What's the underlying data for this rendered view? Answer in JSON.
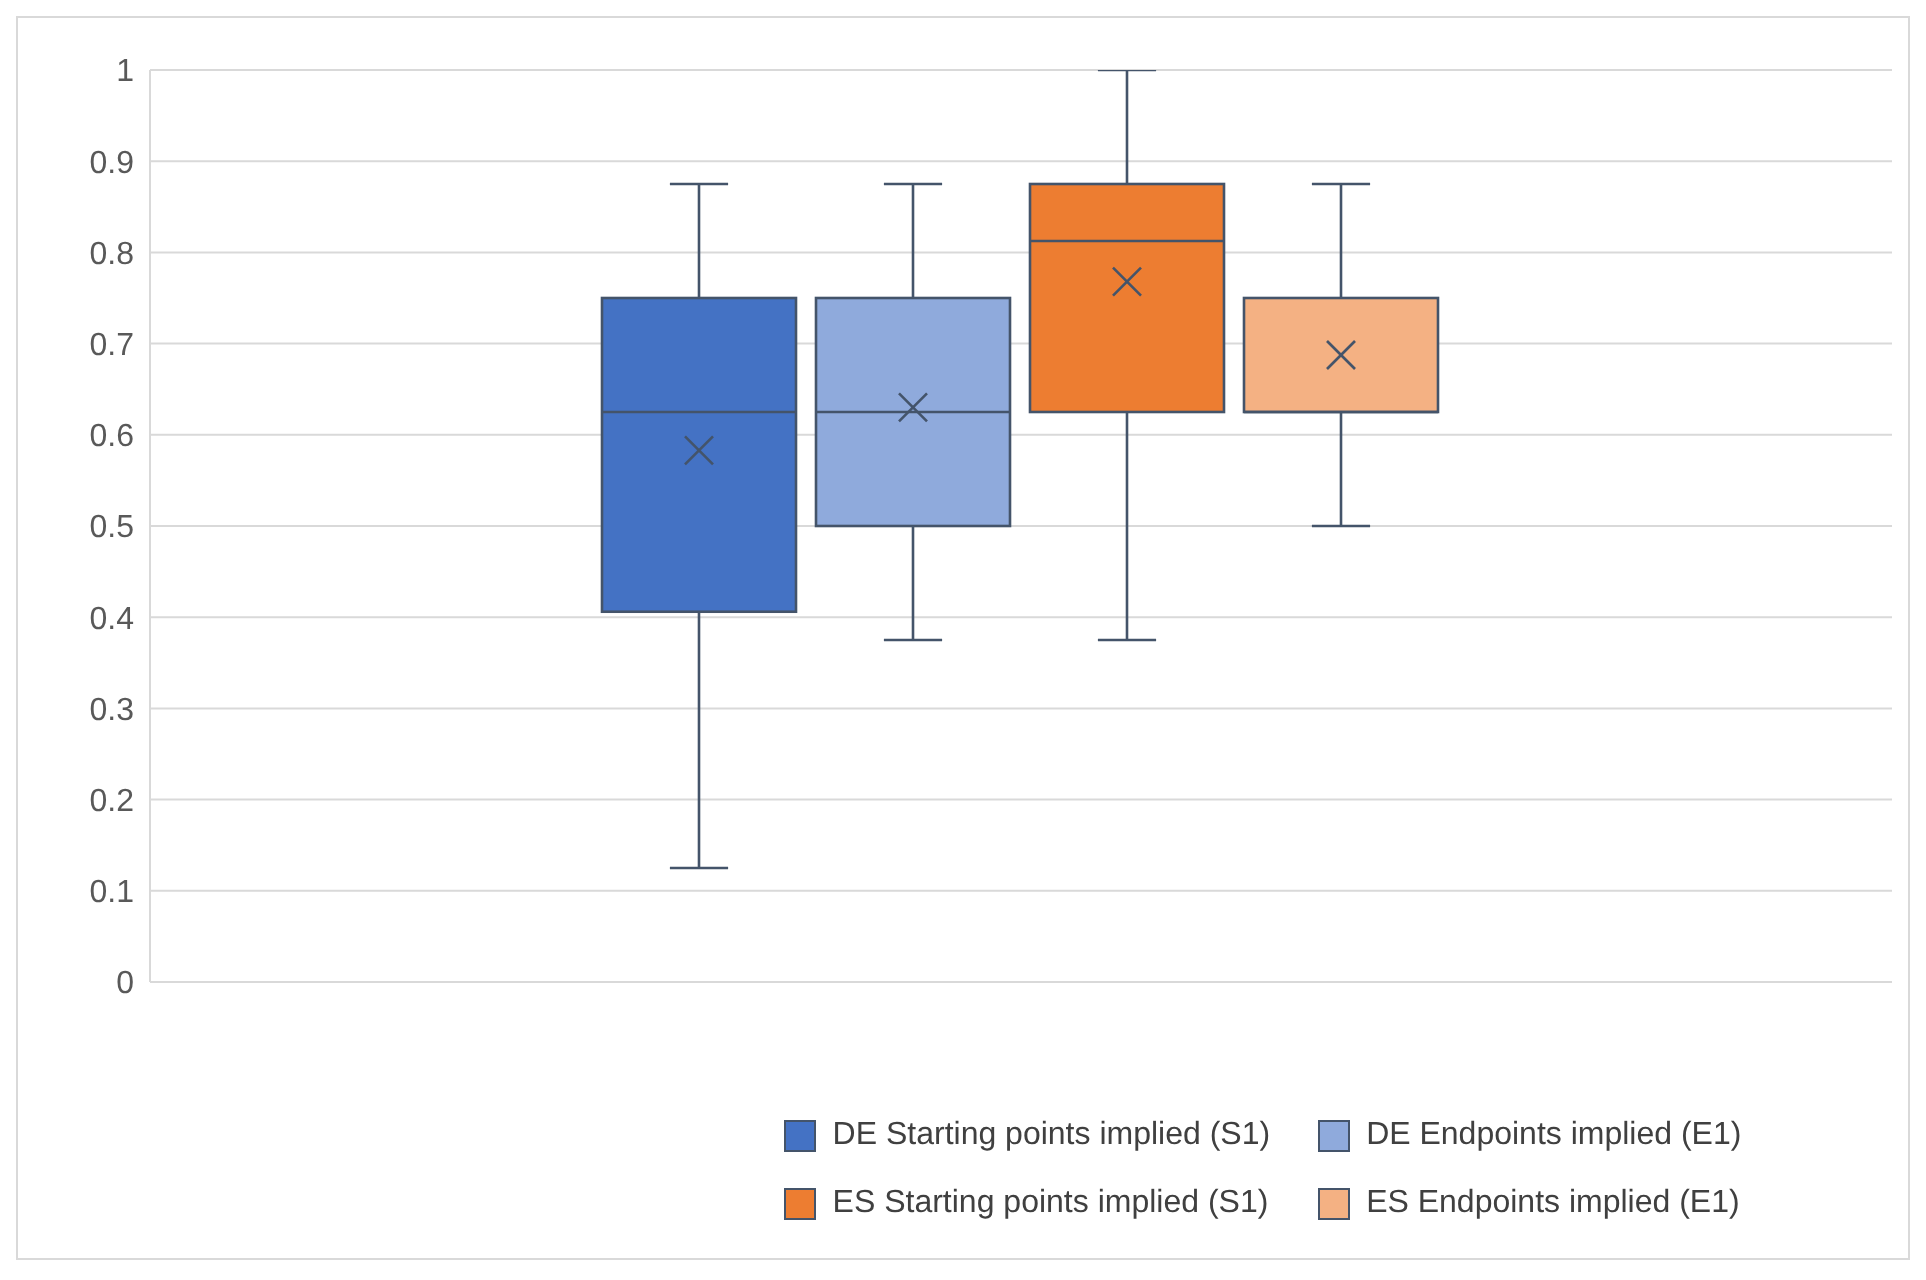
{
  "chart_data": {
    "type": "box",
    "categories": [
      null
    ],
    "series": [
      {
        "name": "DE Starting points implied (S1)",
        "color": "#4472c4",
        "boxes": [
          {
            "low": 0.125,
            "q1": 0.406,
            "median": 0.625,
            "q3": 0.75,
            "high": 0.875,
            "mean": 0.583
          }
        ]
      },
      {
        "name": "DE Endpoints implied (E1)",
        "color": "#8faadc",
        "boxes": [
          {
            "low": 0.375,
            "q1": 0.5,
            "median": 0.625,
            "q3": 0.75,
            "high": 0.875,
            "mean": 0.63
          }
        ]
      },
      {
        "name": "ES Starting points implied (S1)",
        "color": "#ed7d31",
        "boxes": [
          {
            "low": 0.375,
            "q1": 0.625,
            "median": 0.8125,
            "q3": 0.875,
            "high": 1,
            "mean": 0.768
          }
        ]
      },
      {
        "name": "ES Endpoints implied (E1)",
        "color": "#f4b183",
        "boxes": [
          {
            "low": 0.5,
            "q1": 0.625,
            "median": 0.625,
            "q3": 0.75,
            "high": 0.875,
            "mean": 0.6875
          }
        ]
      }
    ],
    "ylim": [
      0,
      1
    ],
    "yticks": [
      0,
      0.1,
      0.2,
      0.3,
      0.4,
      0.5,
      0.6,
      0.7,
      0.8,
      0.9,
      1
    ],
    "grid": "y",
    "legend": "bottom",
    "tick_labels": "y"
  }
}
